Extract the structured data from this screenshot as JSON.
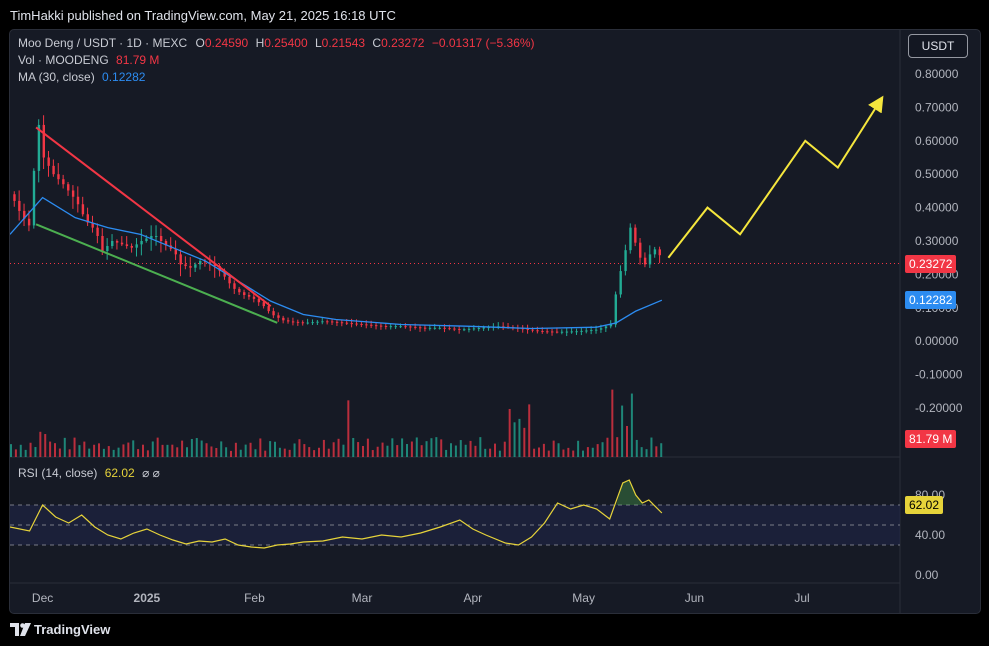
{
  "header": {
    "published": "TimHakki published on TradingView.com, May 21, 2025 16:18 UTC"
  },
  "legend": {
    "symbol": "Moo Deng / USDT · 1D · MEXC",
    "o_label": "O",
    "o_val": "0.24590",
    "h_label": "H",
    "h_val": "0.25400",
    "l_label": "L",
    "l_val": "0.21543",
    "c_label": "C",
    "c_val": "0.23272",
    "change": "−0.01317 (−5.36%)",
    "vol_label": "Vol · MOODENG",
    "vol_val": "81.79 M",
    "ma_label": "MA (30, close)",
    "ma_val": "0.12282",
    "rsi_label": "RSI (14, close)",
    "rsi_val": "62.02",
    "rsi_extra": "⌀ ⌀"
  },
  "currency_button": "USDT",
  "price_tags": {
    "last": "0.23272",
    "ma": "0.12282",
    "vol": "81.79 M",
    "rsi": "62.02"
  },
  "footer": {
    "brand": "TradingView",
    "logo_icon": "tradingview-logo-icon"
  },
  "colors": {
    "up": "#22ab94",
    "down": "#f23645",
    "ma": "#2c8cf1",
    "rsi": "#e6d33a",
    "trend_red": "#f23645",
    "trend_green": "#4caf50",
    "projection": "#f5e63d"
  },
  "chart_data": {
    "type": "candlestick",
    "x_ticks": [
      "Dec",
      "2025",
      "Feb",
      "Mar",
      "Apr",
      "May",
      "Jun",
      "Jul"
    ],
    "y_ticks": [
      "0.80000",
      "0.70000",
      "0.60000",
      "0.50000",
      "0.40000",
      "0.30000",
      "0.20000",
      "0.10000",
      "0.00000",
      "-0.10000",
      "-0.20000"
    ],
    "ylim": [
      -0.3,
      0.8
    ],
    "last_price": 0.23272,
    "price_path": [
      [
        0,
        0.44
      ],
      [
        3,
        0.38
      ],
      [
        6,
        0.34
      ],
      [
        8,
        0.68
      ],
      [
        10,
        0.55
      ],
      [
        13,
        0.5
      ],
      [
        16,
        0.47
      ],
      [
        20,
        0.42
      ],
      [
        23,
        0.36
      ],
      [
        26,
        0.33
      ],
      [
        28,
        0.27
      ],
      [
        31,
        0.3
      ],
      [
        34,
        0.29
      ],
      [
        37,
        0.28
      ],
      [
        40,
        0.3
      ],
      [
        44,
        0.32
      ],
      [
        47,
        0.29
      ],
      [
        50,
        0.27
      ],
      [
        52,
        0.23
      ],
      [
        55,
        0.22
      ],
      [
        58,
        0.24
      ],
      [
        62,
        0.23
      ],
      [
        65,
        0.2
      ],
      [
        68,
        0.16
      ],
      [
        71,
        0.14
      ],
      [
        74,
        0.13
      ],
      [
        77,
        0.11
      ],
      [
        80,
        0.08
      ],
      [
        84,
        0.06
      ],
      [
        90,
        0.055
      ],
      [
        96,
        0.06
      ],
      [
        102,
        0.055
      ],
      [
        108,
        0.05
      ],
      [
        114,
        0.045
      ],
      [
        120,
        0.045
      ],
      [
        126,
        0.04
      ],
      [
        132,
        0.04
      ],
      [
        138,
        0.035
      ],
      [
        144,
        0.04
      ],
      [
        150,
        0.045
      ],
      [
        156,
        0.038
      ],
      [
        162,
        0.03
      ],
      [
        168,
        0.028
      ],
      [
        174,
        0.03
      ],
      [
        180,
        0.035
      ],
      [
        184,
        0.05
      ],
      [
        186,
        0.17
      ],
      [
        188,
        0.25
      ],
      [
        190,
        0.34
      ],
      [
        192,
        0.28
      ],
      [
        194,
        0.22
      ],
      [
        196,
        0.26
      ],
      [
        198,
        0.28
      ],
      [
        200,
        0.235
      ]
    ],
    "ma30_path": [
      [
        0,
        0.32
      ],
      [
        10,
        0.43
      ],
      [
        20,
        0.37
      ],
      [
        30,
        0.34
      ],
      [
        40,
        0.32
      ],
      [
        50,
        0.28
      ],
      [
        60,
        0.24
      ],
      [
        70,
        0.18
      ],
      [
        80,
        0.12
      ],
      [
        90,
        0.08
      ],
      [
        100,
        0.065
      ],
      [
        120,
        0.05
      ],
      [
        140,
        0.045
      ],
      [
        160,
        0.038
      ],
      [
        180,
        0.042
      ],
      [
        186,
        0.055
      ],
      [
        192,
        0.09
      ],
      [
        200,
        0.12282
      ]
    ],
    "trendline_red": [
      [
        8,
        0.64
      ],
      [
        80,
        0.105
      ]
    ],
    "trendline_green": [
      [
        8,
        0.35
      ],
      [
        82,
        0.055
      ]
    ],
    "projection_path": [
      [
        202,
        0.25
      ],
      [
        214,
        0.4
      ],
      [
        224,
        0.32
      ],
      [
        244,
        0.6
      ],
      [
        254,
        0.52
      ],
      [
        267,
        0.72
      ]
    ],
    "volume_max_label": "81.79 M",
    "rsi": {
      "ticks": [
        "80.00",
        "40.00",
        "0.00"
      ],
      "upper": 70,
      "mid": 50,
      "lower": 30,
      "current": 62.02,
      "path": [
        [
          0,
          48
        ],
        [
          6,
          44
        ],
        [
          10,
          70
        ],
        [
          14,
          58
        ],
        [
          18,
          52
        ],
        [
          22,
          60
        ],
        [
          26,
          48
        ],
        [
          30,
          40
        ],
        [
          34,
          36
        ],
        [
          38,
          42
        ],
        [
          42,
          46
        ],
        [
          46,
          40
        ],
        [
          50,
          35
        ],
        [
          54,
          31
        ],
        [
          58,
          34
        ],
        [
          62,
          33
        ],
        [
          66,
          36
        ],
        [
          70,
          30
        ],
        [
          74,
          28
        ],
        [
          78,
          27
        ],
        [
          82,
          30
        ],
        [
          86,
          31
        ],
        [
          90,
          33
        ],
        [
          96,
          34
        ],
        [
          102,
          38
        ],
        [
          108,
          36
        ],
        [
          114,
          40
        ],
        [
          120,
          38
        ],
        [
          126,
          42
        ],
        [
          132,
          48
        ],
        [
          138,
          55
        ],
        [
          142,
          46
        ],
        [
          146,
          40
        ],
        [
          152,
          32
        ],
        [
          156,
          30
        ],
        [
          160,
          38
        ],
        [
          164,
          52
        ],
        [
          168,
          72
        ],
        [
          172,
          66
        ],
        [
          176,
          70
        ],
        [
          180,
          66
        ],
        [
          184,
          56
        ],
        [
          188,
          92
        ],
        [
          190,
          95
        ],
        [
          192,
          80
        ],
        [
          194,
          72
        ],
        [
          196,
          75
        ],
        [
          200,
          62
        ]
      ]
    }
  }
}
